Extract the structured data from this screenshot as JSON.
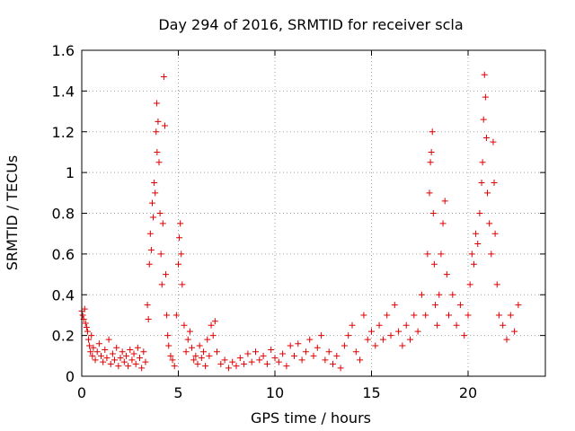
{
  "chart_data": {
    "type": "scatter",
    "title": "Day 294 of 2016, SRMTID for receiver scla",
    "xlabel": "GPS time / hours",
    "ylabel": "SRMTID / TECUs",
    "xlim": [
      0,
      24
    ],
    "ylim": [
      0,
      1.6
    ],
    "x_ticks": [
      0,
      5,
      10,
      15,
      20
    ],
    "x_tick_labels": [
      "0",
      "5",
      "10",
      "15",
      "20"
    ],
    "y_ticks": [
      0,
      0.2,
      0.4,
      0.6,
      0.8,
      1,
      1.2,
      1.4,
      1.6
    ],
    "y_tick_labels": [
      "0",
      "0.2",
      "0.4",
      "0.6",
      "0.8",
      "1",
      "1.2",
      "1.4",
      "1.6"
    ],
    "grid": true,
    "marker": "plus",
    "color": "#e00000",
    "series": [
      {
        "name": "SRMTID",
        "points": [
          [
            0.0,
            0.32
          ],
          [
            0.05,
            0.3
          ],
          [
            0.1,
            0.28
          ],
          [
            0.15,
            0.33
          ],
          [
            0.2,
            0.26
          ],
          [
            0.25,
            0.24
          ],
          [
            0.3,
            0.22
          ],
          [
            0.35,
            0.18
          ],
          [
            0.4,
            0.15
          ],
          [
            0.45,
            0.12
          ],
          [
            0.5,
            0.2
          ],
          [
            0.55,
            0.1
          ],
          [
            0.6,
            0.14
          ],
          [
            0.7,
            0.08
          ],
          [
            0.8,
            0.12
          ],
          [
            0.9,
            0.16
          ],
          [
            1.0,
            0.1
          ],
          [
            1.1,
            0.07
          ],
          [
            1.2,
            0.13
          ],
          [
            1.3,
            0.09
          ],
          [
            1.4,
            0.18
          ],
          [
            1.5,
            0.06
          ],
          [
            1.6,
            0.11
          ],
          [
            1.7,
            0.08
          ],
          [
            1.8,
            0.14
          ],
          [
            1.9,
            0.05
          ],
          [
            2.0,
            0.09
          ],
          [
            2.1,
            0.12
          ],
          [
            2.2,
            0.07
          ],
          [
            2.3,
            0.1
          ],
          [
            2.4,
            0.05
          ],
          [
            2.5,
            0.13
          ],
          [
            2.6,
            0.08
          ],
          [
            2.7,
            0.11
          ],
          [
            2.8,
            0.06
          ],
          [
            2.9,
            0.14
          ],
          [
            3.0,
            0.09
          ],
          [
            3.1,
            0.04
          ],
          [
            3.2,
            0.12
          ],
          [
            3.3,
            0.07
          ],
          [
            3.4,
            0.35
          ],
          [
            3.45,
            0.28
          ],
          [
            3.5,
            0.55
          ],
          [
            3.55,
            0.7
          ],
          [
            3.6,
            0.62
          ],
          [
            3.65,
            0.85
          ],
          [
            3.7,
            0.78
          ],
          [
            3.75,
            0.95
          ],
          [
            3.8,
            0.9
          ],
          [
            3.85,
            1.2
          ],
          [
            3.88,
            1.34
          ],
          [
            3.9,
            1.1
          ],
          [
            3.95,
            1.25
          ],
          [
            4.0,
            1.05
          ],
          [
            4.05,
            0.8
          ],
          [
            4.1,
            0.6
          ],
          [
            4.15,
            0.45
          ],
          [
            4.2,
            0.75
          ],
          [
            4.25,
            1.47
          ],
          [
            4.3,
            1.23
          ],
          [
            4.35,
            0.5
          ],
          [
            4.4,
            0.3
          ],
          [
            4.45,
            0.2
          ],
          [
            4.5,
            0.15
          ],
          [
            4.6,
            0.1
          ],
          [
            4.7,
            0.08
          ],
          [
            4.8,
            0.05
          ],
          [
            4.9,
            0.3
          ],
          [
            5.0,
            0.55
          ],
          [
            5.05,
            0.68
          ],
          [
            5.1,
            0.75
          ],
          [
            5.15,
            0.6
          ],
          [
            5.2,
            0.45
          ],
          [
            5.3,
            0.25
          ],
          [
            5.4,
            0.12
          ],
          [
            5.5,
            0.18
          ],
          [
            5.6,
            0.22
          ],
          [
            5.7,
            0.14
          ],
          [
            5.8,
            0.08
          ],
          [
            5.9,
            0.1
          ],
          [
            6.0,
            0.06
          ],
          [
            6.1,
            0.15
          ],
          [
            6.2,
            0.09
          ],
          [
            6.3,
            0.12
          ],
          [
            6.4,
            0.05
          ],
          [
            6.5,
            0.18
          ],
          [
            6.6,
            0.1
          ],
          [
            6.7,
            0.25
          ],
          [
            6.8,
            0.2
          ],
          [
            6.9,
            0.27
          ],
          [
            7.0,
            0.12
          ],
          [
            7.2,
            0.06
          ],
          [
            7.4,
            0.08
          ],
          [
            7.6,
            0.04
          ],
          [
            7.8,
            0.07
          ],
          [
            8.0,
            0.05
          ],
          [
            8.2,
            0.09
          ],
          [
            8.4,
            0.06
          ],
          [
            8.6,
            0.11
          ],
          [
            8.8,
            0.07
          ],
          [
            9.0,
            0.12
          ],
          [
            9.2,
            0.08
          ],
          [
            9.4,
            0.1
          ],
          [
            9.6,
            0.06
          ],
          [
            9.8,
            0.13
          ],
          [
            10.0,
            0.09
          ],
          [
            10.2,
            0.07
          ],
          [
            10.4,
            0.11
          ],
          [
            10.6,
            0.05
          ],
          [
            10.8,
            0.15
          ],
          [
            11.0,
            0.1
          ],
          [
            11.2,
            0.16
          ],
          [
            11.4,
            0.08
          ],
          [
            11.6,
            0.12
          ],
          [
            11.8,
            0.18
          ],
          [
            12.0,
            0.1
          ],
          [
            12.2,
            0.14
          ],
          [
            12.4,
            0.2
          ],
          [
            12.6,
            0.08
          ],
          [
            12.8,
            0.12
          ],
          [
            13.0,
            0.06
          ],
          [
            13.2,
            0.1
          ],
          [
            13.4,
            0.04
          ],
          [
            13.6,
            0.15
          ],
          [
            13.8,
            0.2
          ],
          [
            14.0,
            0.25
          ],
          [
            14.2,
            0.12
          ],
          [
            14.4,
            0.08
          ],
          [
            14.6,
            0.3
          ],
          [
            14.8,
            0.18
          ],
          [
            15.0,
            0.22
          ],
          [
            15.2,
            0.15
          ],
          [
            15.4,
            0.25
          ],
          [
            15.6,
            0.18
          ],
          [
            15.8,
            0.3
          ],
          [
            16.0,
            0.2
          ],
          [
            16.2,
            0.35
          ],
          [
            16.4,
            0.22
          ],
          [
            16.6,
            0.15
          ],
          [
            16.8,
            0.25
          ],
          [
            17.0,
            0.18
          ],
          [
            17.2,
            0.3
          ],
          [
            17.4,
            0.22
          ],
          [
            17.6,
            0.4
          ],
          [
            17.8,
            0.3
          ],
          [
            17.9,
            0.6
          ],
          [
            18.0,
            0.9
          ],
          [
            18.05,
            1.05
          ],
          [
            18.1,
            1.1
          ],
          [
            18.15,
            1.2
          ],
          [
            18.2,
            0.8
          ],
          [
            18.25,
            0.55
          ],
          [
            18.3,
            0.35
          ],
          [
            18.4,
            0.25
          ],
          [
            18.5,
            0.4
          ],
          [
            18.6,
            0.6
          ],
          [
            18.7,
            0.75
          ],
          [
            18.8,
            0.86
          ],
          [
            18.9,
            0.5
          ],
          [
            19.0,
            0.3
          ],
          [
            19.2,
            0.4
          ],
          [
            19.4,
            0.25
          ],
          [
            19.6,
            0.35
          ],
          [
            19.8,
            0.2
          ],
          [
            20.0,
            0.3
          ],
          [
            20.1,
            0.45
          ],
          [
            20.2,
            0.6
          ],
          [
            20.3,
            0.55
          ],
          [
            20.4,
            0.7
          ],
          [
            20.5,
            0.65
          ],
          [
            20.6,
            0.8
          ],
          [
            20.7,
            0.95
          ],
          [
            20.75,
            1.05
          ],
          [
            20.8,
            1.26
          ],
          [
            20.85,
            1.48
          ],
          [
            20.9,
            1.37
          ],
          [
            20.95,
            1.17
          ],
          [
            21.0,
            0.9
          ],
          [
            21.1,
            0.75
          ],
          [
            21.2,
            0.6
          ],
          [
            21.3,
            1.15
          ],
          [
            21.35,
            0.95
          ],
          [
            21.4,
            0.7
          ],
          [
            21.5,
            0.45
          ],
          [
            21.6,
            0.3
          ],
          [
            21.8,
            0.25
          ],
          [
            22.0,
            0.18
          ],
          [
            22.2,
            0.3
          ],
          [
            22.4,
            0.22
          ],
          [
            22.6,
            0.35
          ]
        ]
      }
    ]
  }
}
